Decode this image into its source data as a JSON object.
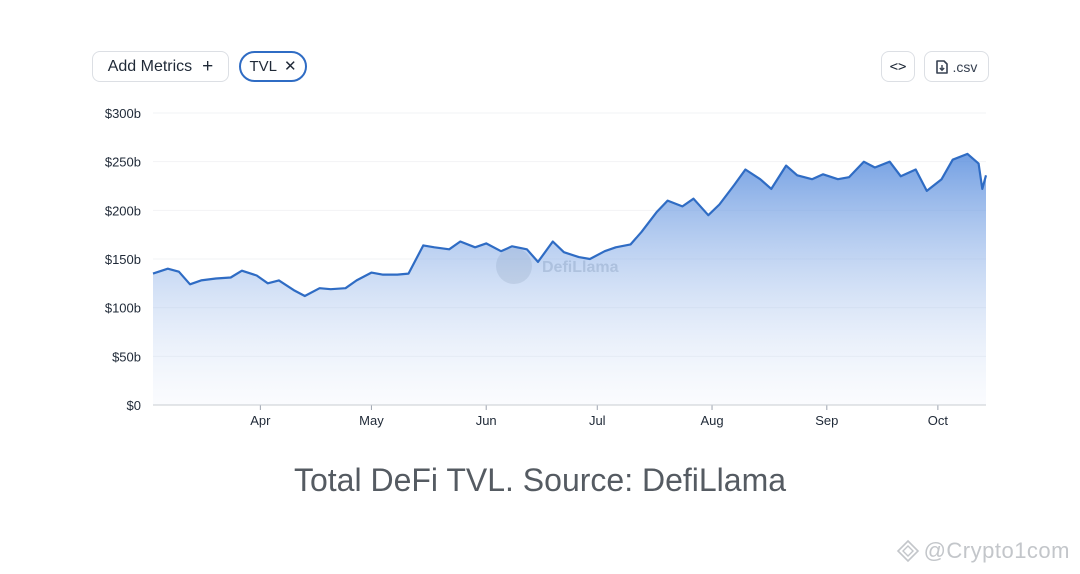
{
  "toolbar": {
    "add_metrics_label": "Add Metrics",
    "add_icon": "plus-icon",
    "metric_chip": "TVL",
    "remove_icon": "close-icon",
    "embed_icon": "code-icon",
    "csv_label": ".csv",
    "csv_icon": "file-download-icon"
  },
  "chart_data": {
    "type": "area",
    "title": "",
    "xlabel": "",
    "ylabel": "",
    "x_ticks": [
      "Apr",
      "May",
      "Jun",
      "Jul",
      "Aug",
      "Sep",
      "Oct"
    ],
    "y_ticks": [
      "$0",
      "$50b",
      "$100b",
      "$150b",
      "$200b",
      "$250b",
      "$300b"
    ],
    "ylim": [
      0,
      300
    ],
    "y_unit": "billion USD",
    "grid": true,
    "legend": "none",
    "color": "#2f6cc4",
    "watermark": "DefiLlama",
    "series": [
      {
        "x": [
          "Mar 3",
          "Mar 7",
          "Mar 10",
          "Mar 13",
          "Mar 16",
          "Mar 20",
          "Mar 24",
          "Mar 27",
          "Mar 31",
          "Apr 3",
          "Apr 6",
          "Apr 10",
          "Apr 13",
          "Apr 17",
          "Apr 20",
          "Apr 24",
          "Apr 27",
          "May 1",
          "May 4",
          "May 8",
          "May 11",
          "May 15",
          "May 18",
          "May 22",
          "May 25",
          "May 29",
          "Jun 1",
          "Jun 5",
          "Jun 8",
          "Jun 12",
          "Jun 15",
          "Jun 19",
          "Jun 22",
          "Jun 26",
          "Jun 29",
          "Jul 3",
          "Jul 6",
          "Jul 10",
          "Jul 13",
          "Jul 17",
          "Jul 20",
          "Jul 24",
          "Jul 27",
          "Jul 31",
          "Aug 3",
          "Aug 7",
          "Aug 10",
          "Aug 14",
          "Aug 17",
          "Aug 21",
          "Aug 24",
          "Aug 28",
          "Aug 31",
          "Sep 4",
          "Sep 7",
          "Sep 11",
          "Sep 14",
          "Sep 18",
          "Sep 21",
          "Sep 25",
          "Sep 28",
          "Oct 2",
          "Oct 5",
          "Oct 9",
          "Oct 12",
          "Oct 13",
          "Oct 14"
        ],
        "values": [
          135,
          140,
          137,
          124,
          128,
          130,
          131,
          138,
          133,
          125,
          128,
          118,
          112,
          120,
          119,
          120,
          128,
          136,
          134,
          134,
          135,
          164,
          162,
          160,
          168,
          162,
          166,
          158,
          163,
          160,
          147,
          168,
          157,
          152,
          150,
          158,
          162,
          165,
          178,
          198,
          210,
          204,
          212,
          195,
          206,
          226,
          242,
          232,
          222,
          246,
          236,
          232,
          237,
          232,
          234,
          250,
          244,
          250,
          235,
          242,
          220,
          232,
          252,
          258,
          248,
          222,
          236
        ]
      }
    ]
  },
  "caption": "Total DeFi TVL. Source: DefiLlama",
  "credit": "@Crypto1com"
}
